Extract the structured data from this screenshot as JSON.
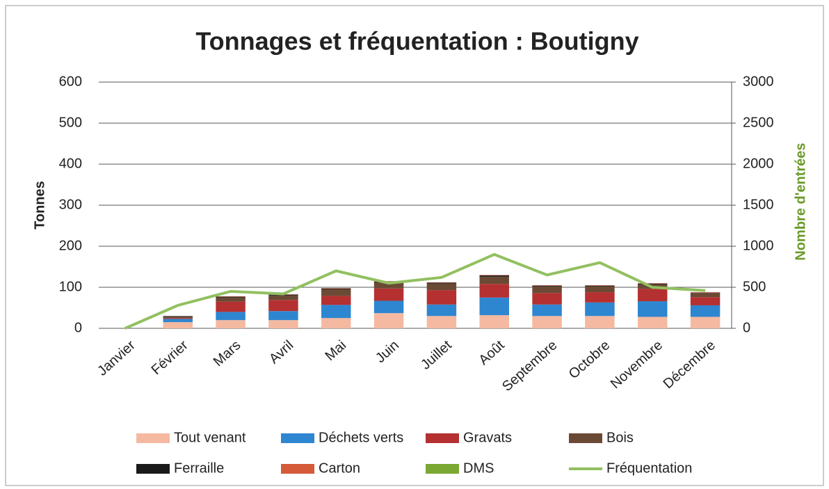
{
  "chart_data": {
    "type": "bar",
    "stacked": true,
    "title": "Tonnages et fréquentation : Boutigny",
    "y_label": "Tonnes",
    "y2_label": "Nombre d'entrées",
    "categories": [
      "Janvier",
      "Février",
      "Mars",
      "Avril",
      "Mai",
      "Juin",
      "Juillet",
      "Août",
      "Septembre",
      "Octobre",
      "Novembre",
      "Décembre"
    ],
    "ylim": [
      0,
      600
    ],
    "yticks": [
      0,
      100,
      200,
      300,
      400,
      500,
      600
    ],
    "y2lim": [
      0,
      3000
    ],
    "y2ticks": [
      0,
      500,
      1000,
      1500,
      2000,
      2500,
      3000
    ],
    "grid": true,
    "series": [
      {
        "name": "Tout venant",
        "color": "#f4b9a0",
        "values": [
          0,
          15,
          20,
          20,
          25,
          37,
          30,
          32,
          30,
          30,
          28,
          28
        ]
      },
      {
        "name": "Déchets verts",
        "color": "#2e86d0",
        "values": [
          0,
          8,
          20,
          22,
          32,
          30,
          28,
          43,
          28,
          33,
          38,
          28
        ]
      },
      {
        "name": "Gravats",
        "color": "#b53030",
        "values": [
          0,
          2,
          25,
          27,
          22,
          30,
          35,
          33,
          28,
          25,
          30,
          20
        ]
      },
      {
        "name": "Bois",
        "color": "#6b4a35",
        "values": [
          0,
          4,
          10,
          11,
          16,
          15,
          16,
          18,
          16,
          14,
          11,
          10
        ]
      },
      {
        "name": "Ferraille",
        "color": "#1a1a1a",
        "values": [
          0,
          1,
          2,
          2,
          2,
          2,
          2,
          3,
          2,
          2,
          2,
          1
        ]
      },
      {
        "name": "Carton",
        "color": "#d45a3a",
        "values": [
          0,
          0,
          1,
          1,
          1,
          1,
          1,
          1,
          1,
          1,
          1,
          1
        ]
      },
      {
        "name": "DMS",
        "color": "#7aa832",
        "values": [
          0,
          0,
          0,
          0,
          0,
          0,
          0,
          0,
          0,
          0,
          0,
          0
        ]
      },
      {
        "name": "Fréquentation",
        "color": "#92c060",
        "type": "line",
        "axis": "y2",
        "values": [
          0,
          280,
          450,
          420,
          700,
          550,
          620,
          900,
          650,
          800,
          500,
          460
        ]
      }
    ]
  }
}
